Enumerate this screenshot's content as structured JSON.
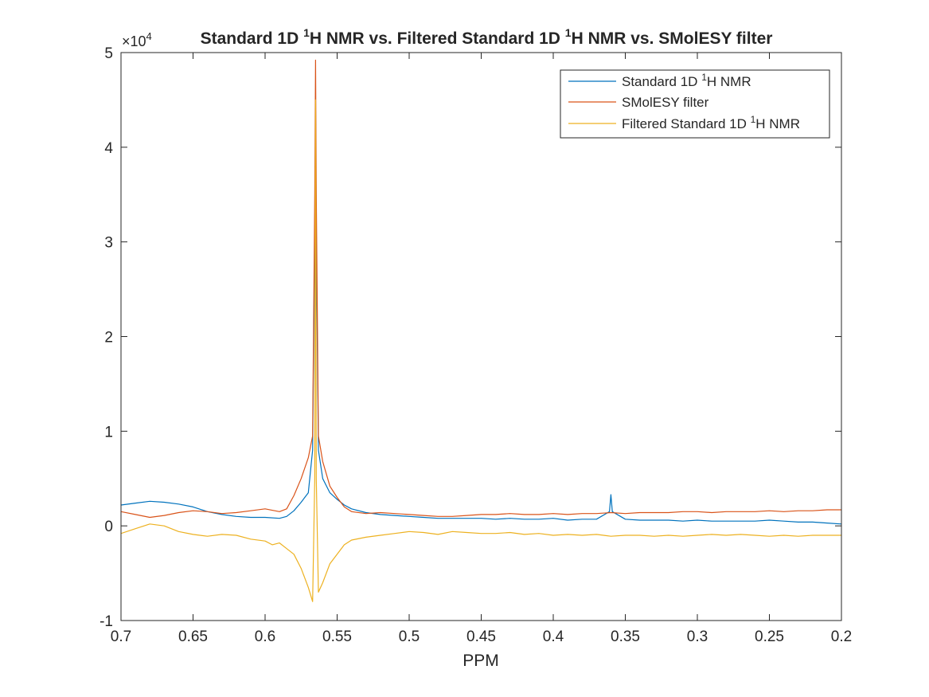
{
  "chart_data": {
    "type": "line",
    "title": "Standard 1D ¹H NMR vs. Filtered Standard 1D ¹H NMR vs. SMolESY filter",
    "title_parts": {
      "p1": "Standard 1D ",
      "sup1": "1",
      "p2": "H NMR vs. Filtered Standard 1D ",
      "sup2": "1",
      "p3": "H NMR vs. SMolESY filter"
    },
    "xlabel": "PPM",
    "ylabel": "",
    "x_reversed": true,
    "xlim": [
      0.2,
      0.7
    ],
    "ylim": [
      -10000,
      50000
    ],
    "y_exponent_label": {
      "base": "×10",
      "exp": "4"
    },
    "xticks": [
      0.7,
      0.65,
      0.6,
      0.55,
      0.5,
      0.45,
      0.4,
      0.35,
      0.3,
      0.25,
      0.2
    ],
    "xtick_labels": [
      "0.7",
      "0.65",
      "0.6",
      "0.55",
      "0.5",
      "0.45",
      "0.4",
      "0.35",
      "0.3",
      "0.25",
      "0.2"
    ],
    "yticks": [
      -10000,
      0,
      10000,
      20000,
      30000,
      40000,
      50000
    ],
    "ytick_labels": [
      "-1",
      "0",
      "1",
      "2",
      "3",
      "4",
      "5"
    ],
    "grid": false,
    "legend_position": "top-right",
    "series": [
      {
        "name": "Standard 1D ¹H NMR",
        "name_parts": {
          "p1": "Standard 1D ",
          "sup": "1",
          "p2": "H NMR"
        },
        "color": "#0072BD",
        "x": [
          0.7,
          0.69,
          0.68,
          0.67,
          0.66,
          0.65,
          0.64,
          0.63,
          0.62,
          0.61,
          0.6,
          0.59,
          0.585,
          0.58,
          0.575,
          0.57,
          0.567,
          0.5655,
          0.565,
          0.5645,
          0.563,
          0.56,
          0.555,
          0.55,
          0.545,
          0.54,
          0.53,
          0.52,
          0.51,
          0.5,
          0.49,
          0.48,
          0.47,
          0.46,
          0.45,
          0.44,
          0.43,
          0.42,
          0.41,
          0.4,
          0.39,
          0.38,
          0.37,
          0.361,
          0.36,
          0.359,
          0.35,
          0.34,
          0.33,
          0.32,
          0.31,
          0.3,
          0.29,
          0.28,
          0.27,
          0.26,
          0.25,
          0.24,
          0.23,
          0.22,
          0.21,
          0.2
        ],
        "y": [
          2200,
          2400,
          2600,
          2500,
          2300,
          2000,
          1500,
          1200,
          1000,
          900,
          900,
          800,
          1000,
          1600,
          2500,
          3500,
          8000,
          30000,
          44000,
          30000,
          8000,
          5000,
          3500,
          2800,
          2200,
          1800,
          1400,
          1200,
          1100,
          1000,
          900,
          800,
          800,
          800,
          800,
          700,
          800,
          700,
          700,
          800,
          600,
          700,
          700,
          1500,
          3300,
          1500,
          700,
          600,
          600,
          600,
          500,
          600,
          500,
          500,
          500,
          500,
          600,
          500,
          400,
          400,
          300,
          200
        ]
      },
      {
        "name": "SMolESY filter",
        "name_parts": {
          "p1": "SMolESY filter",
          "sup": "",
          "p2": ""
        },
        "color": "#D95319",
        "x": [
          0.7,
          0.69,
          0.68,
          0.67,
          0.66,
          0.65,
          0.64,
          0.63,
          0.62,
          0.61,
          0.6,
          0.59,
          0.585,
          0.58,
          0.575,
          0.57,
          0.567,
          0.5655,
          0.565,
          0.5645,
          0.563,
          0.56,
          0.555,
          0.55,
          0.545,
          0.54,
          0.53,
          0.52,
          0.51,
          0.5,
          0.49,
          0.48,
          0.47,
          0.46,
          0.45,
          0.44,
          0.43,
          0.42,
          0.41,
          0.4,
          0.39,
          0.38,
          0.37,
          0.36,
          0.35,
          0.34,
          0.33,
          0.32,
          0.31,
          0.3,
          0.29,
          0.28,
          0.27,
          0.26,
          0.25,
          0.24,
          0.23,
          0.22,
          0.21,
          0.2
        ],
        "y": [
          1500,
          1200,
          900,
          1100,
          1400,
          1600,
          1500,
          1300,
          1400,
          1600,
          1800,
          1500,
          1800,
          3200,
          5000,
          7200,
          9500,
          35000,
          49200,
          35000,
          9500,
          6800,
          4200,
          3000,
          2000,
          1500,
          1300,
          1400,
          1300,
          1200,
          1100,
          1000,
          1000,
          1100,
          1200,
          1200,
          1300,
          1200,
          1200,
          1300,
          1200,
          1300,
          1300,
          1400,
          1300,
          1400,
          1400,
          1400,
          1500,
          1500,
          1400,
          1500,
          1500,
          1500,
          1600,
          1500,
          1600,
          1600,
          1700,
          1700
        ]
      },
      {
        "name": "Filtered Standard 1D ¹H NMR",
        "name_parts": {
          "p1": "Filtered Standard 1D ",
          "sup": "1",
          "p2": "H NMR"
        },
        "color": "#EDB120",
        "x": [
          0.7,
          0.69,
          0.68,
          0.67,
          0.66,
          0.65,
          0.64,
          0.63,
          0.62,
          0.61,
          0.6,
          0.595,
          0.59,
          0.585,
          0.58,
          0.575,
          0.57,
          0.567,
          0.5655,
          0.565,
          0.5645,
          0.563,
          0.56,
          0.555,
          0.55,
          0.545,
          0.54,
          0.53,
          0.52,
          0.51,
          0.5,
          0.49,
          0.48,
          0.47,
          0.46,
          0.45,
          0.44,
          0.43,
          0.42,
          0.41,
          0.4,
          0.39,
          0.38,
          0.37,
          0.36,
          0.35,
          0.34,
          0.33,
          0.32,
          0.31,
          0.3,
          0.29,
          0.28,
          0.27,
          0.26,
          0.25,
          0.24,
          0.23,
          0.22,
          0.21,
          0.2
        ],
        "y": [
          -800,
          -300,
          200,
          0,
          -600,
          -900,
          -1100,
          -900,
          -1000,
          -1400,
          -1600,
          -2000,
          -1800,
          -2400,
          -3000,
          -4500,
          -6500,
          -8000,
          5000,
          45000,
          5000,
          -7000,
          -6000,
          -4000,
          -3000,
          -2000,
          -1500,
          -1200,
          -1000,
          -800,
          -600,
          -700,
          -900,
          -600,
          -700,
          -800,
          -800,
          -700,
          -900,
          -800,
          -1000,
          -900,
          -1000,
          -900,
          -1100,
          -1000,
          -1000,
          -1100,
          -1000,
          -1100,
          -1000,
          -900,
          -1000,
          -900,
          -1000,
          -1100,
          -1000,
          -1100,
          -1000,
          -1000,
          -1000
        ]
      }
    ]
  }
}
